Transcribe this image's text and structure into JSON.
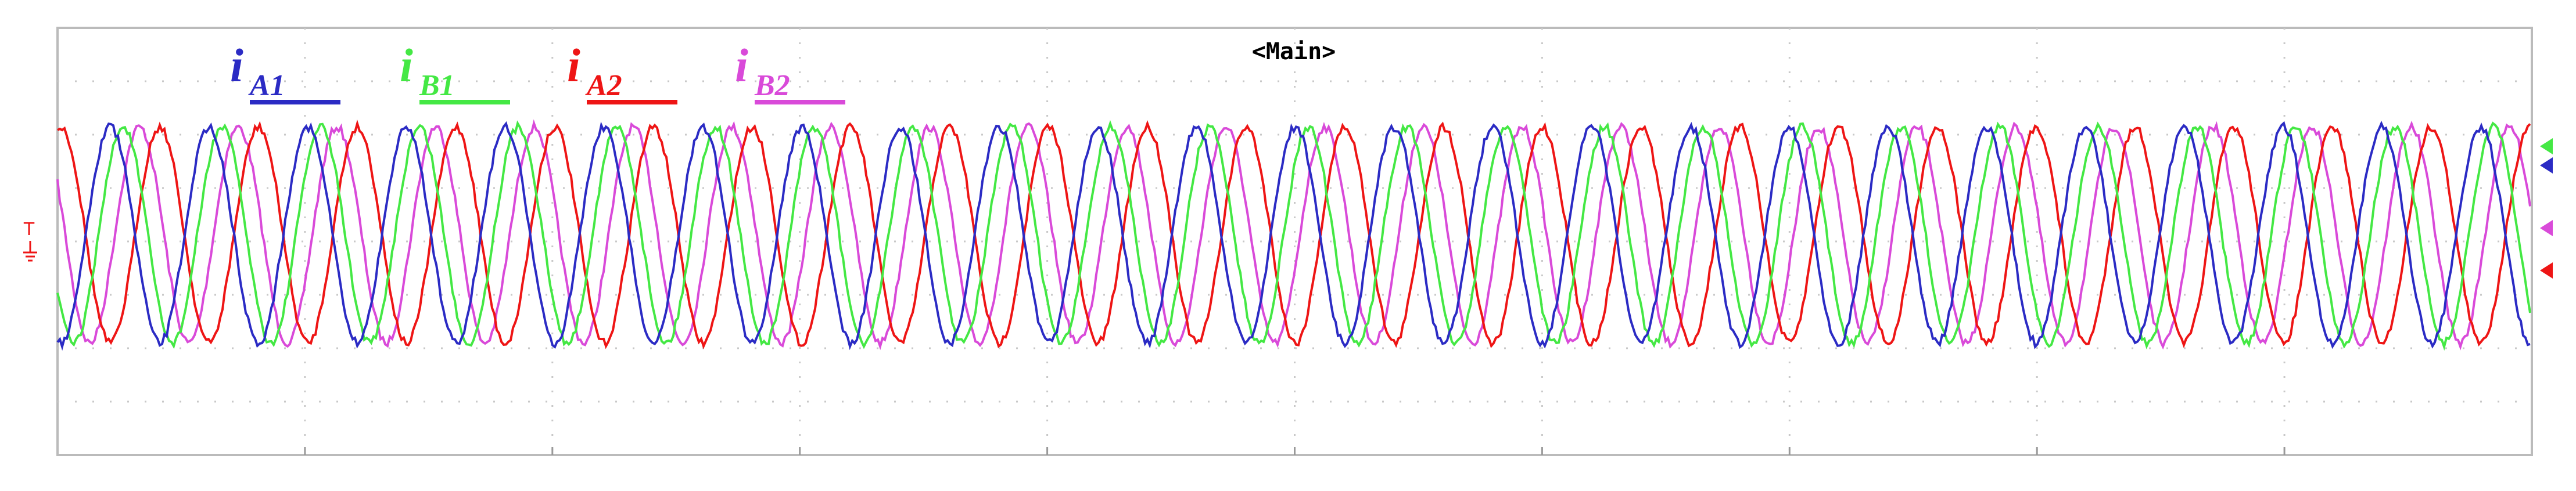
{
  "header": {
    "title": "<Main>"
  },
  "legend": [
    {
      "symbol": "i",
      "sub": "A1",
      "color": "#2b2bc4"
    },
    {
      "symbol": "i",
      "sub": "B1",
      "color": "#44e844"
    },
    {
      "symbol": "i",
      "sub": "A2",
      "color": "#ee1515"
    },
    {
      "symbol": "i",
      "sub": "B2",
      "color": "#d94ad9"
    }
  ],
  "trigger": "T"
}
